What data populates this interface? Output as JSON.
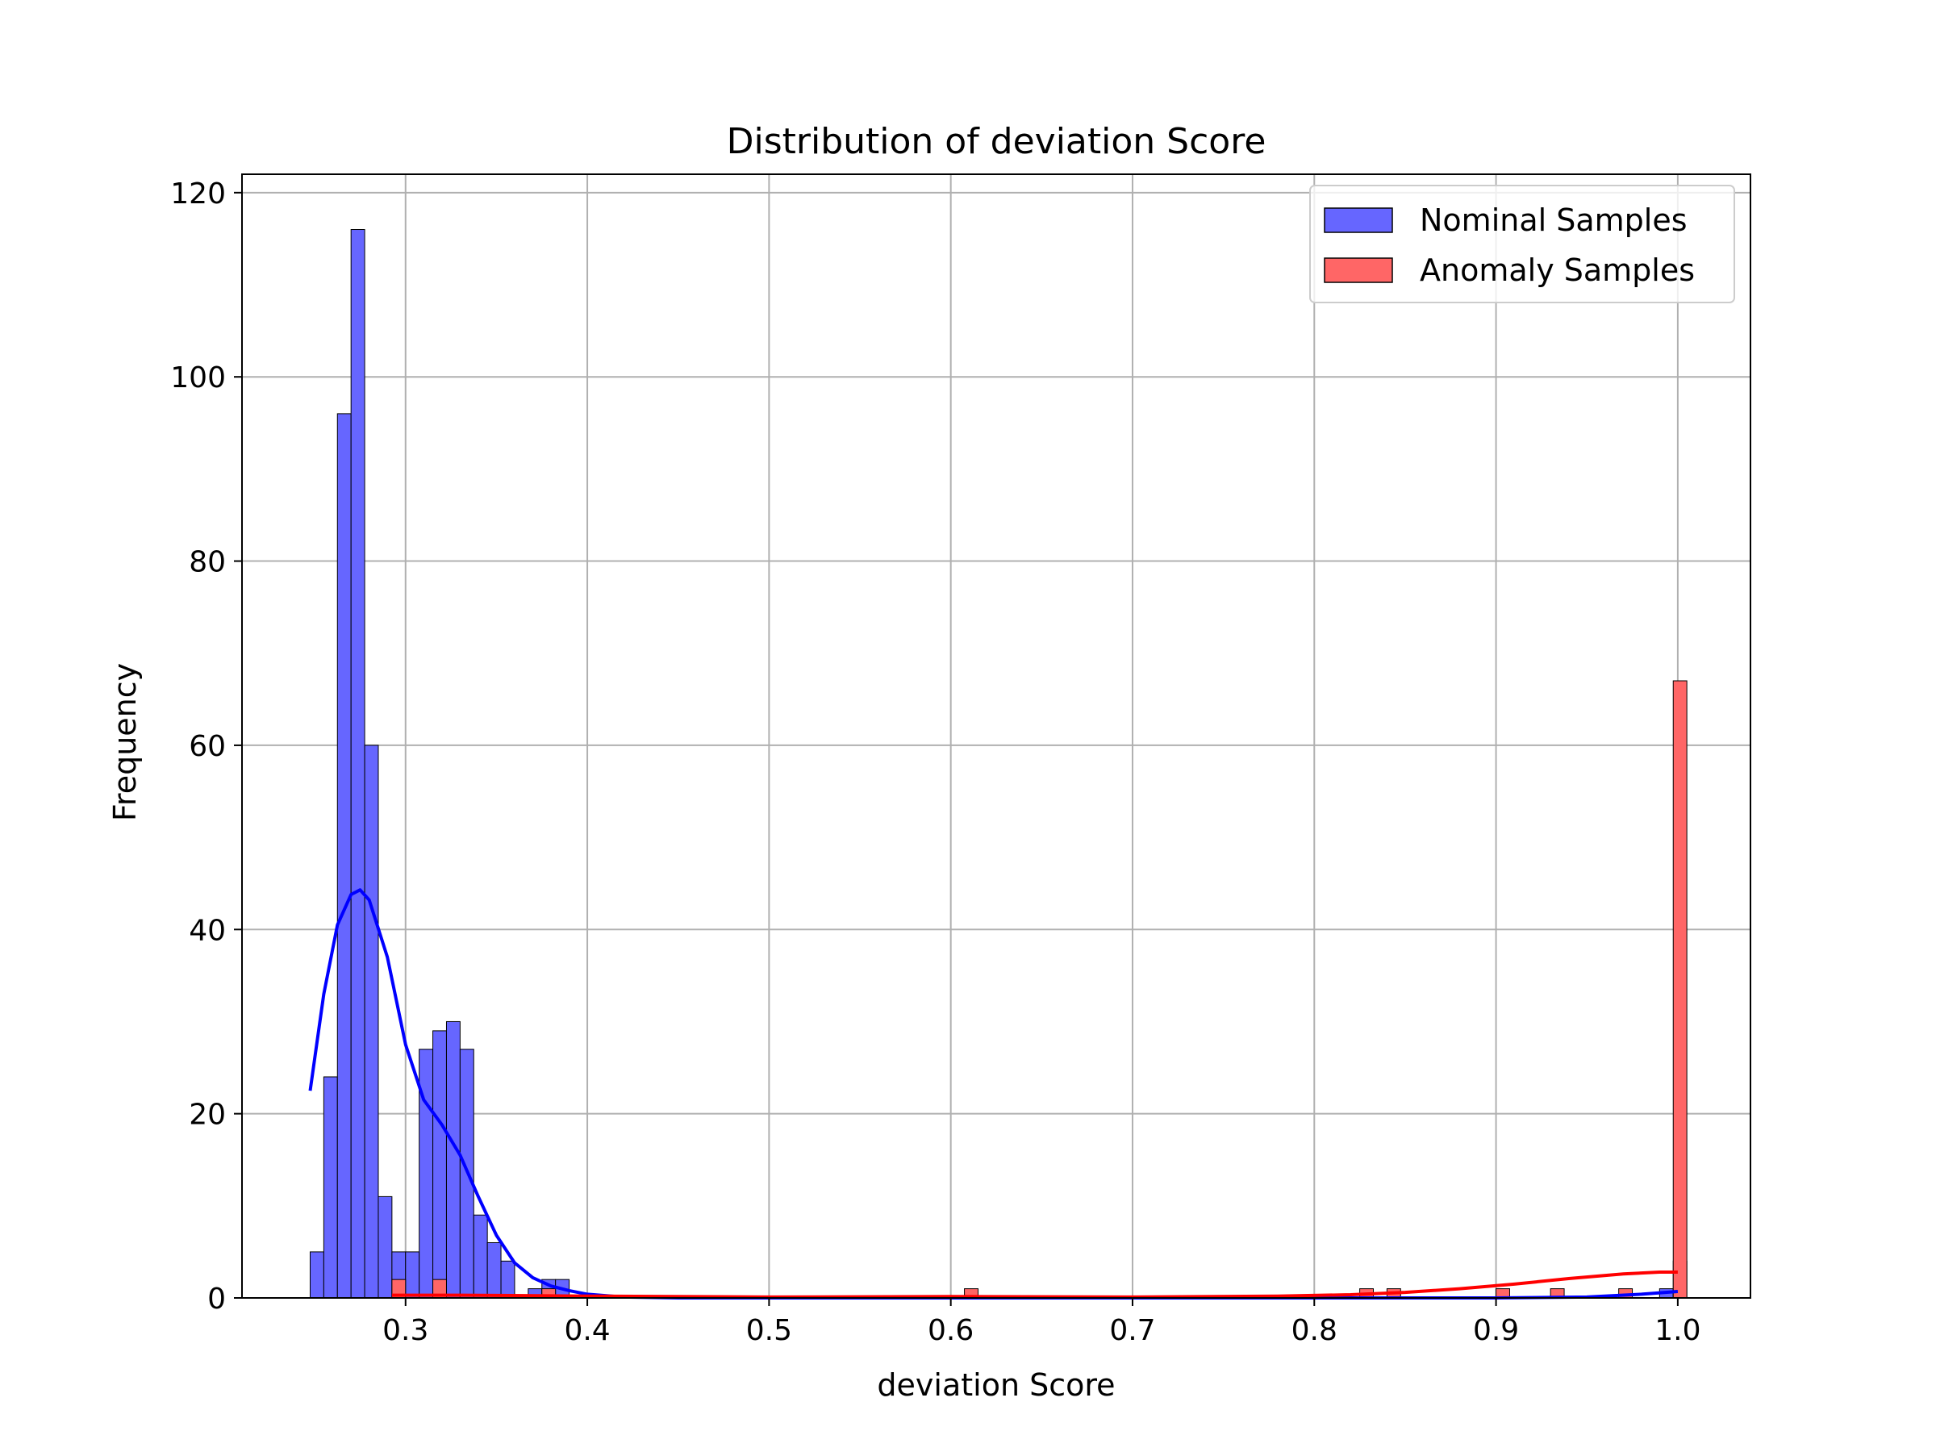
{
  "chart_data": {
    "type": "histogram",
    "title": "Distribution of deviation Score",
    "xlabel": "deviation Score",
    "ylabel": "Frequency",
    "xlim": [
      0.21,
      1.04
    ],
    "ylim": [
      0,
      122
    ],
    "xticks": [
      "0.3",
      "0.4",
      "0.5",
      "0.6",
      "0.7",
      "0.8",
      "0.9",
      "1.0"
    ],
    "yticks": [
      "0",
      "20",
      "40",
      "60",
      "80",
      "100",
      "120"
    ],
    "grid": true,
    "legend_position": "top-right",
    "bin_width": 0.0075,
    "series": [
      {
        "name": "Nominal Samples",
        "color": "#6666ff",
        "line_color": "#0000ff",
        "bins": [
          {
            "start": 0.2475,
            "count": 5
          },
          {
            "start": 0.255,
            "count": 24
          },
          {
            "start": 0.2625,
            "count": 96
          },
          {
            "start": 0.27,
            "count": 116
          },
          {
            "start": 0.2775,
            "count": 60
          },
          {
            "start": 0.285,
            "count": 11
          },
          {
            "start": 0.2925,
            "count": 5
          },
          {
            "start": 0.3,
            "count": 5
          },
          {
            "start": 0.3075,
            "count": 27
          },
          {
            "start": 0.315,
            "count": 29
          },
          {
            "start": 0.3225,
            "count": 30
          },
          {
            "start": 0.33,
            "count": 27
          },
          {
            "start": 0.3375,
            "count": 9
          },
          {
            "start": 0.345,
            "count": 6
          },
          {
            "start": 0.3525,
            "count": 4
          },
          {
            "start": 0.3675,
            "count": 1
          },
          {
            "start": 0.375,
            "count": 2
          },
          {
            "start": 0.3825,
            "count": 2
          },
          {
            "start": 0.99,
            "count": 1
          },
          {
            "start": 0.9975,
            "count": 4
          }
        ],
        "kde": [
          [
            0.2475,
            22.5
          ],
          [
            0.255,
            33
          ],
          [
            0.2625,
            40.5
          ],
          [
            0.27,
            43.8
          ],
          [
            0.275,
            44.3
          ],
          [
            0.28,
            43.2
          ],
          [
            0.29,
            37
          ],
          [
            0.3,
            27.5
          ],
          [
            0.31,
            21.5
          ],
          [
            0.32,
            18.8
          ],
          [
            0.33,
            15.5
          ],
          [
            0.34,
            11
          ],
          [
            0.35,
            6.8
          ],
          [
            0.36,
            3.8
          ],
          [
            0.37,
            2.2
          ],
          [
            0.38,
            1.3
          ],
          [
            0.39,
            0.8
          ],
          [
            0.4,
            0.4
          ],
          [
            0.42,
            0.1
          ],
          [
            0.45,
            0
          ],
          [
            0.6,
            0
          ],
          [
            0.8,
            0
          ],
          [
            0.9,
            0
          ],
          [
            0.95,
            0.1
          ],
          [
            0.98,
            0.4
          ],
          [
            1.0,
            0.7
          ]
        ]
      },
      {
        "name": "Anomaly Samples",
        "color": "#ff6666",
        "line_color": "#ff0000",
        "bins": [
          {
            "start": 0.2925,
            "count": 2
          },
          {
            "start": 0.315,
            "count": 2
          },
          {
            "start": 0.375,
            "count": 1
          },
          {
            "start": 0.6075,
            "count": 1
          },
          {
            "start": 0.825,
            "count": 1
          },
          {
            "start": 0.84,
            "count": 1
          },
          {
            "start": 0.9,
            "count": 1
          },
          {
            "start": 0.93,
            "count": 1
          },
          {
            "start": 0.9675,
            "count": 1
          },
          {
            "start": 0.9975,
            "count": 67
          }
        ],
        "kde": [
          [
            0.2925,
            0.3
          ],
          [
            0.33,
            0.3
          ],
          [
            0.4,
            0.2
          ],
          [
            0.5,
            0.1
          ],
          [
            0.6,
            0.15
          ],
          [
            0.7,
            0.1
          ],
          [
            0.78,
            0.2
          ],
          [
            0.82,
            0.35
          ],
          [
            0.85,
            0.6
          ],
          [
            0.88,
            1.0
          ],
          [
            0.91,
            1.5
          ],
          [
            0.94,
            2.1
          ],
          [
            0.97,
            2.6
          ],
          [
            0.99,
            2.8
          ],
          [
            1.0,
            2.8
          ]
        ]
      }
    ]
  }
}
